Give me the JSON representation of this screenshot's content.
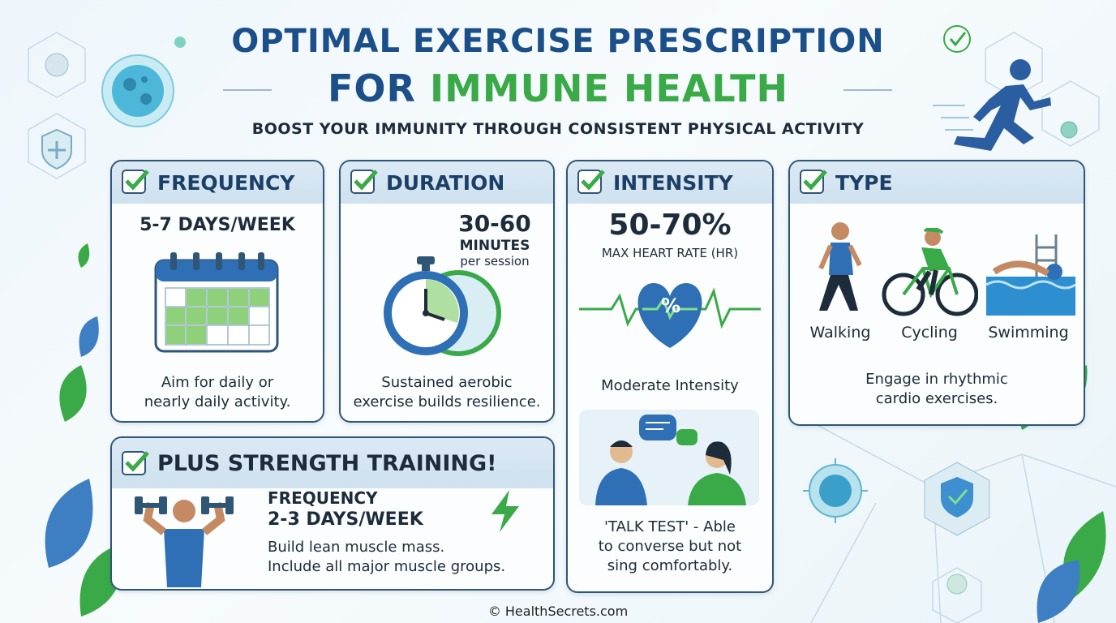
{
  "header": {
    "title_line1": "OPTIMAL EXERCISE PRESCRIPTION",
    "title_line2_a": "FOR ",
    "title_line2_b": "IMMUNE HEALTH",
    "subtitle": "BOOST YOUR IMMUNITY THROUGH CONSISTENT PHYSICAL ACTIVITY"
  },
  "frequency": {
    "heading": "FREQUENCY",
    "value": "5-7 DAYS/WEEK",
    "desc_line1": "Aim for daily or",
    "desc_line2": "nearly daily activity."
  },
  "duration": {
    "heading": "DURATION",
    "value": "30-60",
    "unit": "MINUTES",
    "per": "per session",
    "desc_line1": "Sustained aerobic",
    "desc_line2": "exercise builds resilience."
  },
  "intensity": {
    "heading": "INTENSITY",
    "value": "50-70%",
    "unit": "MAX HEART RATE (HR)",
    "heart_symbol": "%",
    "level": "Moderate Intensity",
    "talk_line1": "'TALK TEST' - Able",
    "talk_line2": "to converse but not",
    "talk_line3": "sing comfortably."
  },
  "type": {
    "heading": "TYPE",
    "activities": [
      "Walking",
      "Cycling",
      "Swimming"
    ],
    "desc_line1": "Engage in rhythmic",
    "desc_line2": "cardio exercises."
  },
  "strength": {
    "heading": "PLUS STRENGTH TRAINING!",
    "freq_label": "FREQUENCY",
    "freq_value": "2-3 DAYS/WEEK",
    "desc_line1": "Build lean muscle mass.",
    "desc_line2": "Include all major muscle groups."
  },
  "footer": {
    "credit": "© HealthSecrets.com"
  },
  "colors": {
    "navy": "#1b4f8a",
    "green": "#3aa948",
    "border": "#2f5675",
    "blue": "#2e6fb5"
  },
  "icons": [
    "virus-icon",
    "shield-plus-icon",
    "runner-icon",
    "check-badge-icon",
    "calendar-icon",
    "stopwatch-icon",
    "heart-rate-icon",
    "walker-icon",
    "cyclist-icon",
    "swimmer-icon",
    "dumbbell-person-icon",
    "chat-people-icon",
    "lightning-icon",
    "leaf-icon"
  ]
}
